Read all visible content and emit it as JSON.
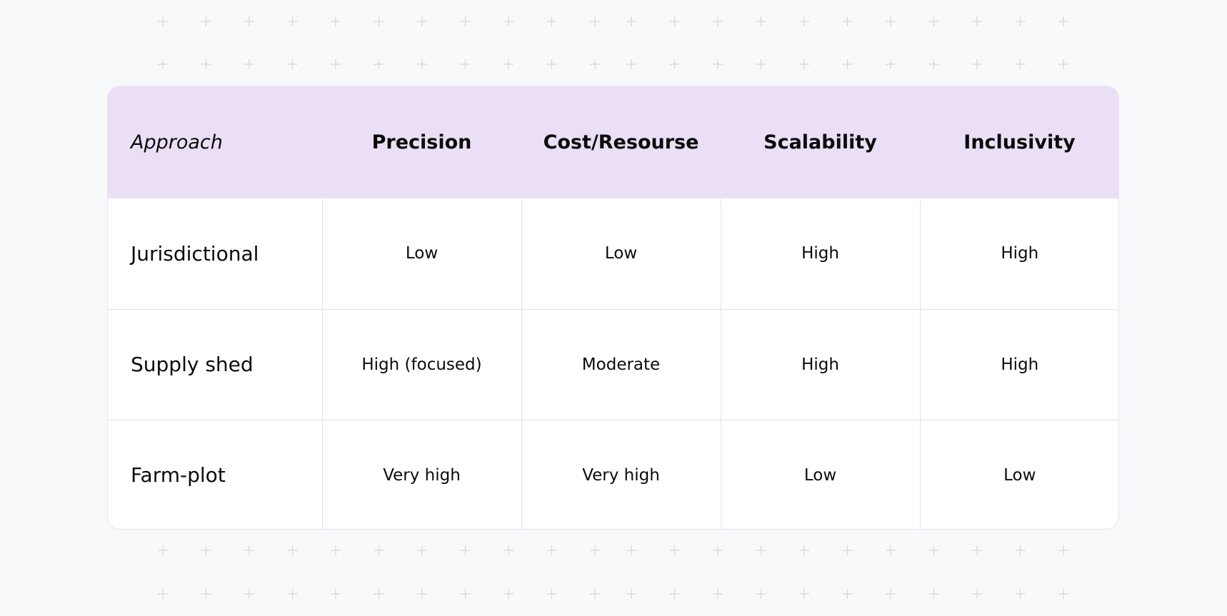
{
  "table": {
    "corner_label": "Approach",
    "columns": [
      "Precision",
      "Cost/Resourse",
      "Scalability",
      "Inclusivity"
    ],
    "rows": [
      {
        "label": "Jurisdictional",
        "values": [
          "Low",
          "Low",
          "High",
          "High"
        ]
      },
      {
        "label": "Supply shed",
        "values": [
          "High (focused)",
          "Moderate",
          "High",
          "High"
        ]
      },
      {
        "label": "Farm-plot",
        "values": [
          "Very high",
          "Very high",
          "Low",
          "Low"
        ]
      }
    ]
  },
  "colors": {
    "background": "#f8f9fb",
    "header_fill": "#ebdff6",
    "cell_border": "#e6e0f0",
    "plus_marks": "#d5d7dc"
  }
}
